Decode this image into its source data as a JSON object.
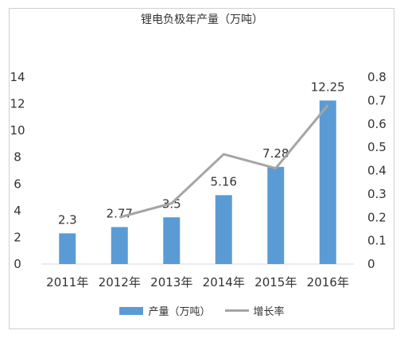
{
  "chart_data": {
    "type": "bar",
    "title": "锂电负极年产量（万吨）",
    "categories": [
      "2011年",
      "2012年",
      "2013年",
      "2014年",
      "2015年",
      "2016年"
    ],
    "series": [
      {
        "name": "产量（万吨）",
        "type": "bar",
        "axis": "left",
        "color": "#5b9bd5",
        "values": [
          2.3,
          2.77,
          3.5,
          5.16,
          7.28,
          12.25
        ],
        "data_labels": [
          "2.3",
          "2.77",
          "3.5",
          "5.16",
          "7.28",
          "12.25"
        ]
      },
      {
        "name": "增长率",
        "type": "line",
        "axis": "right",
        "color": "#a5a5a5",
        "values": [
          null,
          0.2,
          0.26,
          0.47,
          0.41,
          0.68
        ]
      }
    ],
    "y_left": {
      "min": 0,
      "max": 14,
      "ticks": [
        "0",
        "2",
        "4",
        "6",
        "8",
        "10",
        "12",
        "14"
      ]
    },
    "y_right": {
      "min": 0,
      "max": 0.8,
      "ticks": [
        "0",
        "0.1",
        "0.2",
        "0.3",
        "0.4",
        "0.5",
        "0.6",
        "0.7",
        "0.8"
      ]
    },
    "grid": false,
    "legend_position": "bottom"
  }
}
